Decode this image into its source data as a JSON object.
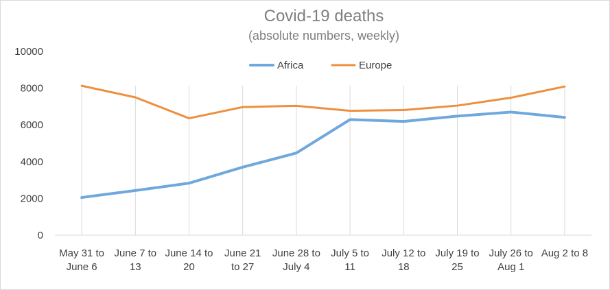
{
  "chart_data": {
    "type": "line",
    "title": "Covid-19 deaths",
    "subtitle": "(absolute numbers, weekly)",
    "xlabel": "",
    "ylabel": "",
    "ylim": [
      0,
      10000
    ],
    "yticks": [
      0,
      2000,
      4000,
      6000,
      8000,
      10000
    ],
    "grid": "vertical",
    "legend_position": "top-center",
    "categories": [
      [
        "May 31 to",
        "June 6"
      ],
      [
        "June 7 to",
        "13"
      ],
      [
        "June 14 to",
        "20"
      ],
      [
        "June  21",
        "to 27"
      ],
      [
        "June 28 to",
        "July 4"
      ],
      [
        "July 5 to",
        "11"
      ],
      [
        "July 12 to",
        "18"
      ],
      [
        "July 19 to",
        "25"
      ],
      [
        "July 26 to",
        "Aug 1"
      ],
      [
        "Aug 2 to 8",
        ""
      ]
    ],
    "series": [
      {
        "name": "Africa",
        "color": "#6fa8dc",
        "values": [
          2050,
          2430,
          2830,
          3700,
          4470,
          6290,
          6190,
          6480,
          6700,
          6410
        ]
      },
      {
        "name": "Europe",
        "color": "#ed8f3c",
        "values": [
          8130,
          7500,
          6360,
          6970,
          7040,
          6770,
          6810,
          7050,
          7480,
          8090
        ]
      }
    ]
  }
}
